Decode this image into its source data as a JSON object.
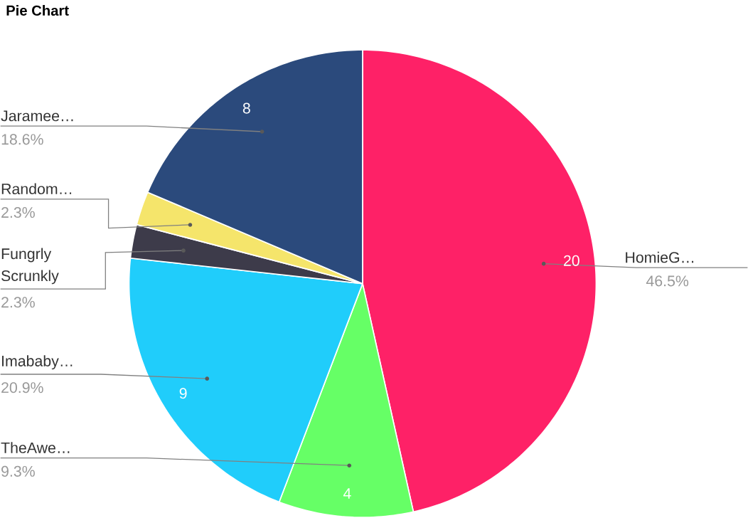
{
  "chart_data": {
    "type": "pie",
    "title": "Pie Chart",
    "categories": [
      "HomieG…",
      "TheAwe…",
      "Imababy…",
      "Fungrly Scrunkly",
      "Random…",
      "Jaramee…"
    ],
    "values": [
      20,
      4,
      9,
      1,
      1,
      8
    ],
    "colors": [
      "#fe2167",
      "#66ff66",
      "#20cdfb",
      "#3d3b4a",
      "#f5e56b",
      "#2b4a7c"
    ],
    "value_labels": [
      "20",
      "4",
      "9",
      null,
      null,
      "8"
    ],
    "annotations": [
      {
        "text": "46.5%",
        "x": "HomieG…"
      },
      {
        "text": "9.3%",
        "x": "TheAwe…"
      },
      {
        "text": "20.9%",
        "x": "Imababy…"
      },
      {
        "text": "2.3%",
        "x": "Fungrly Scrunkly"
      },
      {
        "text": "2.3%",
        "x": "Random…"
      },
      {
        "text": "18.6%",
        "x": "Jaramee…"
      }
    ]
  }
}
